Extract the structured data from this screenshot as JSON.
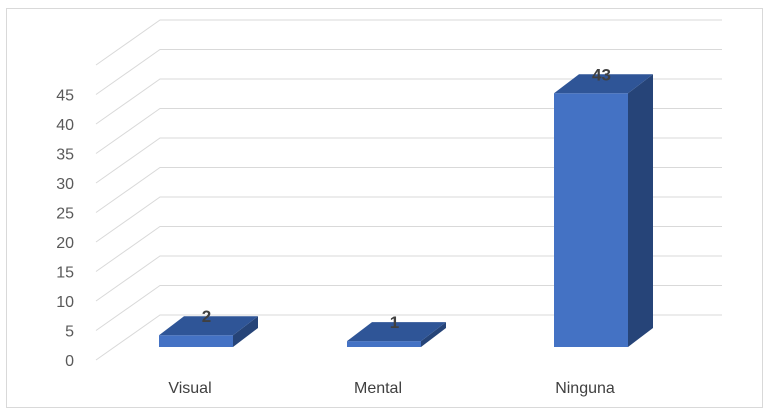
{
  "chart_data": {
    "type": "bar",
    "style": "3d-column",
    "categories": [
      "Visual",
      "Mental",
      "Ninguna"
    ],
    "values": [
      2,
      1,
      43
    ],
    "data_labels": [
      "2",
      "1",
      "43"
    ],
    "yticks": [
      "0",
      "5",
      "10",
      "15",
      "20",
      "25",
      "30",
      "35",
      "40",
      "45"
    ],
    "ylim": [
      0,
      50
    ],
    "grid": true,
    "legend": "none",
    "colors": {
      "front": "#4472c4",
      "top": "#2f5597",
      "side": "#264478",
      "grid": "#d9d9d9"
    }
  }
}
